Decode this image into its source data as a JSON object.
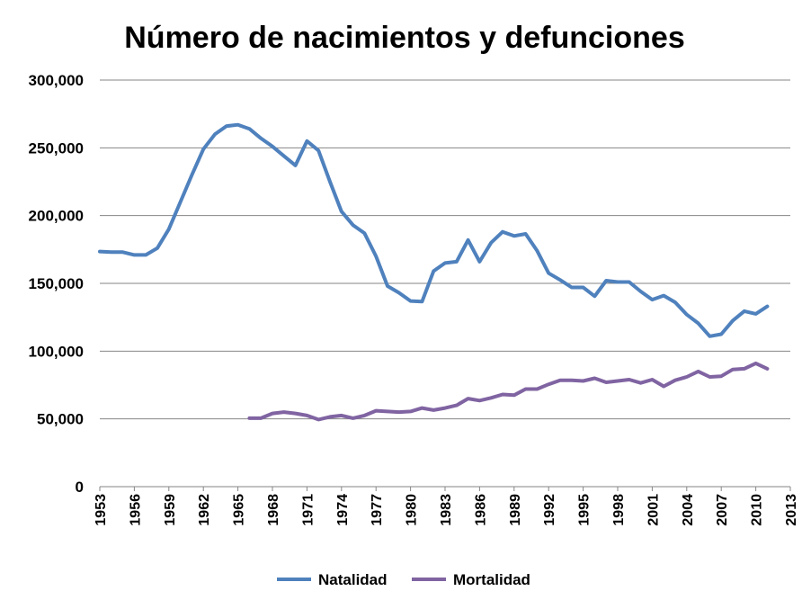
{
  "chart_data": {
    "type": "line",
    "title": "Número de nacimientos y defunciones",
    "xlabel": "",
    "ylabel": "",
    "xlim": [
      1953,
      2013
    ],
    "ylim": [
      0,
      300000
    ],
    "x_ticks": [
      "1953",
      "1956",
      "1959",
      "1962",
      "1965",
      "1968",
      "1971",
      "1974",
      "1977",
      "1980",
      "1983",
      "1986",
      "1989",
      "1992",
      "1995",
      "1998",
      "2001",
      "2004",
      "2007",
      "2010",
      "2013"
    ],
    "y_ticks": [
      "0",
      "50,000",
      "100,000",
      "150,000",
      "200,000",
      "250,000",
      "300,000"
    ],
    "y_tick_values": [
      0,
      50000,
      100000,
      150000,
      200000,
      250000,
      300000
    ],
    "grid": "horizontal",
    "legend": "bottom",
    "series": [
      {
        "name": "Natalidad",
        "color": "#4f81bd",
        "x": [
          1953,
          1954,
          1955,
          1956,
          1957,
          1958,
          1959,
          1960,
          1961,
          1962,
          1963,
          1964,
          1965,
          1966,
          1967,
          1968,
          1969,
          1970,
          1971,
          1972,
          1973,
          1974,
          1975,
          1976,
          1977,
          1978,
          1979,
          1980,
          1981,
          1982,
          1983,
          1984,
          1985,
          1986,
          1987,
          1988,
          1989,
          1990,
          1991,
          1992,
          1993,
          1994,
          1995,
          1996,
          1997,
          1998,
          1999,
          2000,
          2001,
          2002,
          2003,
          2004,
          2005,
          2006,
          2007,
          2008,
          2009,
          2010,
          2011
        ],
        "values": [
          173500,
          173000,
          173000,
          171000,
          171000,
          176000,
          190000,
          210000,
          230000,
          249000,
          260000,
          266000,
          267000,
          264000,
          257000,
          251000,
          244000,
          237000,
          255000,
          248000,
          225000,
          203000,
          193000,
          187000,
          170000,
          148000,
          143000,
          137000,
          136500,
          159000,
          165000,
          166000,
          182000,
          166000,
          180000,
          188000,
          185000,
          186500,
          174000,
          157500,
          152500,
          147000,
          147000,
          140500,
          152000,
          151000,
          151000,
          144000,
          138000,
          141000,
          136000,
          127000,
          120500,
          111000,
          112500,
          122500,
          129500,
          127500,
          133000
        ]
      },
      {
        "name": "Mortalidad",
        "color": "#8064a2",
        "x": [
          1966,
          1967,
          1968,
          1969,
          1970,
          1971,
          1972,
          1973,
          1974,
          1975,
          1976,
          1977,
          1978,
          1979,
          1980,
          1981,
          1982,
          1983,
          1984,
          1985,
          1986,
          1987,
          1988,
          1989,
          1990,
          1991,
          1992,
          1993,
          1994,
          1995,
          1996,
          1997,
          1998,
          1999,
          2000,
          2001,
          2002,
          2003,
          2004,
          2005,
          2006,
          2007,
          2008,
          2009,
          2010,
          2011
        ],
        "values": [
          50500,
          50500,
          54000,
          55000,
          54000,
          52500,
          49500,
          51500,
          52500,
          50500,
          52500,
          56000,
          55500,
          55000,
          55500,
          58000,
          56500,
          58000,
          60000,
          65000,
          63500,
          65500,
          68000,
          67500,
          72000,
          72000,
          75500,
          78500,
          78500,
          78000,
          80000,
          77000,
          78000,
          79000,
          76500,
          79000,
          74000,
          78500,
          81000,
          85000,
          81000,
          81500,
          86500,
          87000,
          91000,
          87000
        ]
      }
    ]
  }
}
